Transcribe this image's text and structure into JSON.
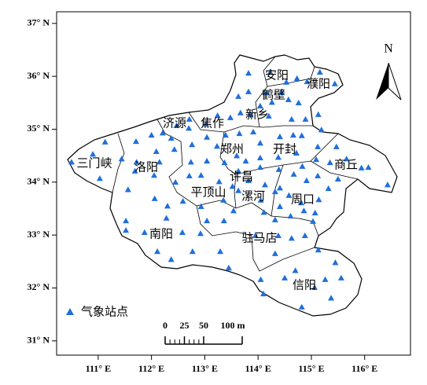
{
  "chart_data": {
    "type": "scatter",
    "xlim": [
      110.22,
      116.86
    ],
    "ylim": [
      30.73,
      37.22
    ],
    "xticks": [
      {
        "value": 111,
        "label": "111° E"
      },
      {
        "value": 112,
        "label": "112° E"
      },
      {
        "value": 113,
        "label": "113° E"
      },
      {
        "value": 114,
        "label": "114° E"
      },
      {
        "value": 115,
        "label": "115° E"
      },
      {
        "value": 116,
        "label": "116° E"
      }
    ],
    "yticks": [
      {
        "value": 31,
        "label": "31° N"
      },
      {
        "value": 32,
        "label": "32° N"
      },
      {
        "value": 33,
        "label": "33° N"
      },
      {
        "value": 34,
        "label": "34° N"
      },
      {
        "value": 35,
        "label": "35° N"
      },
      {
        "value": 36,
        "label": "36° N"
      },
      {
        "value": 37,
        "label": "37° N"
      }
    ],
    "series": [
      {
        "name": "气象站点",
        "color": "#1f6fdc",
        "x": [
          113.82,
          114.23,
          114.73,
          115.16,
          114.92,
          114.53,
          114.44,
          114.16,
          114.57,
          114.76,
          114.26,
          113.82,
          113.63,
          114.04,
          113.67,
          114.2,
          113.86,
          113.48,
          113.24,
          114.63,
          114.89,
          115.13,
          115.44,
          114.66,
          114.82,
          115.19,
          113.02,
          112.7,
          112.71,
          112.47,
          112.21,
          112.37,
          112.0,
          111.71,
          111.13,
          110.9,
          110.5,
          111.03,
          111.44,
          111.72,
          112.09,
          112.43,
          112.76,
          113.04,
          113.39,
          113.65,
          113.91,
          114.04,
          114.41,
          113.23,
          113.6,
          113.77,
          114.04,
          114.38,
          114.72,
          115.12,
          115.47,
          115.66,
          115.35,
          115.09,
          114.83,
          114.67,
          114.39,
          114.04,
          113.63,
          113.37,
          113.04,
          112.74,
          112.15,
          112.05,
          111.69,
          111.56,
          112.06,
          112.45,
          112.71,
          112.93,
          113.27,
          113.52,
          113.82,
          114.13,
          114.41,
          114.91,
          115.12,
          115.5,
          115.94,
          116.07,
          116.43,
          114.32,
          114.58,
          114.86,
          115.07,
          115.14,
          115.32,
          114.81,
          113.63,
          113.35,
          113.54,
          113.36,
          114.05,
          114.11,
          114.41,
          114.32,
          112.59,
          112.3,
          112.93,
          111.52,
          111.52,
          111.87,
          112.28,
          112.58,
          112.92,
          113.04,
          112.77,
          112.37,
          112.11,
          113.29,
          113.45,
          113.95,
          114.38,
          114.63,
          114.61,
          115.03,
          114.88,
          114.32,
          115.13,
          115.45,
          115.26,
          114.7,
          115.56,
          115.37,
          114.05,
          114.1,
          114.5,
          114.82,
          115.06
        ],
        "y": [
          36.06,
          36.08,
          35.96,
          36.08,
          35.9,
          35.89,
          35.69,
          35.69,
          35.56,
          35.5,
          35.51,
          35.71,
          35.62,
          35.44,
          35.31,
          35.25,
          35.28,
          35.22,
          35.26,
          35.19,
          35.19,
          35.28,
          35.86,
          34.89,
          34.88,
          34.99,
          35.1,
          35.02,
          35.19,
          35.07,
          34.93,
          34.83,
          34.89,
          34.77,
          34.76,
          34.53,
          34.38,
          34.07,
          34.44,
          34.38,
          34.58,
          34.62,
          34.71,
          34.85,
          34.89,
          34.92,
          34.95,
          34.74,
          34.86,
          34.68,
          34.5,
          34.4,
          34.46,
          34.47,
          34.55,
          34.67,
          34.67,
          34.44,
          34.37,
          34.43,
          34.3,
          34.15,
          34.24,
          34.28,
          34.21,
          34.37,
          34.4,
          34.38,
          34.38,
          34.13,
          34.21,
          33.86,
          33.69,
          34.0,
          34.12,
          34.13,
          34.01,
          33.92,
          34.03,
          33.95,
          33.89,
          34.03,
          34.12,
          34.06,
          34.27,
          34.28,
          33.95,
          33.82,
          33.75,
          33.46,
          33.42,
          33.67,
          33.88,
          33.61,
          33.84,
          33.66,
          33.46,
          33.27,
          33.66,
          33.43,
          33.54,
          33.29,
          33.64,
          33.55,
          33.54,
          33.27,
          33.09,
          33.05,
          33.32,
          33.05,
          33.03,
          33.27,
          32.69,
          32.54,
          32.69,
          32.69,
          32.38,
          32.99,
          32.99,
          32.94,
          33.36,
          33.26,
          32.99,
          32.65,
          32.72,
          32.48,
          32.16,
          32.33,
          32.19,
          31.81,
          32.16,
          31.89,
          32.19,
          31.64,
          32.01
        ]
      }
    ],
    "annotations": [
      "安阳",
      "濮阳",
      "鹤壁",
      "新乡",
      "济源",
      "焦作",
      "郑州",
      "开封",
      "三门峡",
      "洛阳",
      "商丘",
      "许昌",
      "平顶山",
      "漯河",
      "周口",
      "南阳",
      "驻马店",
      "信阳"
    ],
    "north_label": "N",
    "scale_bar": {
      "ticks": [
        0,
        25,
        50,
        {
          "value": 100,
          "label": "100 m"
        }
      ]
    }
  }
}
